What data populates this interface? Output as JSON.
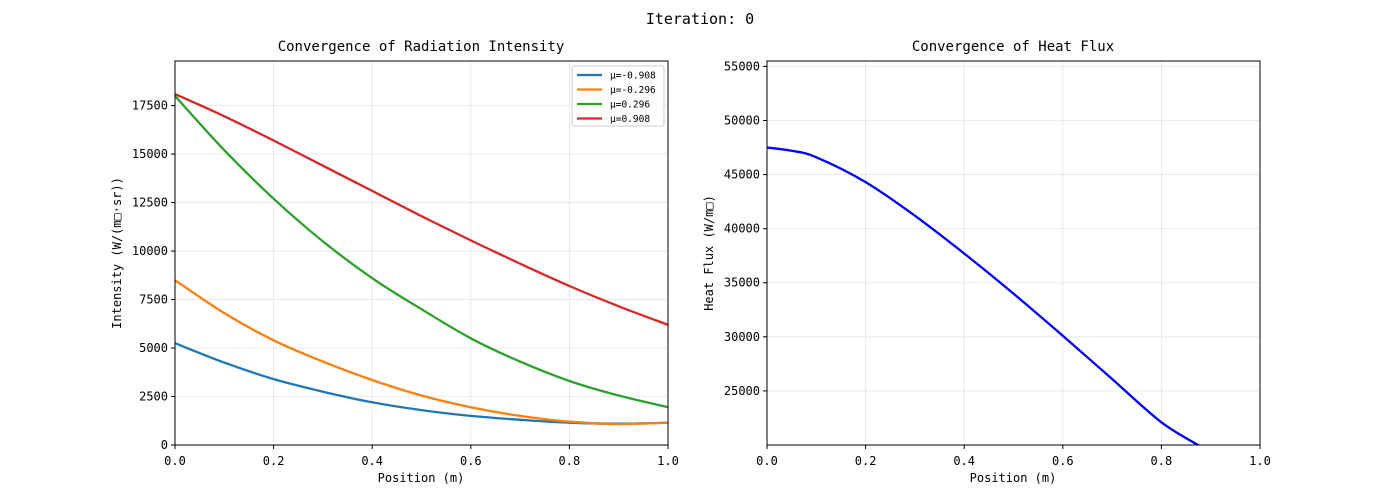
{
  "figure": {
    "suptitle": "Iteration: 0"
  },
  "colors": {
    "series": [
      "#1f77b4",
      "#ff7f0e",
      "#2ca02c",
      "#d62728"
    ],
    "heat_flux": "#0000ff",
    "grid": "#e6e6e6",
    "axes": "#000000"
  },
  "chart_data": [
    {
      "type": "line",
      "title": "Convergence of Radiation Intensity",
      "xlabel": "Position (m)",
      "ylabel": "Intensity (W/(m□·sr))",
      "xlim": [
        0,
        1
      ],
      "ylim": [
        0,
        19800
      ],
      "xticks": [
        0,
        0.2,
        0.4,
        0.6,
        0.8,
        1.0
      ],
      "xtick_labels": [
        "0.0",
        "0.2",
        "0.4",
        "0.6",
        "0.8",
        "1.0"
      ],
      "yticks": [
        0,
        2500,
        5000,
        7500,
        10000,
        12500,
        15000,
        17500
      ],
      "ytick_labels": [
        "0",
        "2500",
        "5000",
        "7500",
        "10000",
        "12500",
        "15000",
        "17500"
      ],
      "grid": true,
      "legend_position": "top-right",
      "x": [
        0,
        0.1,
        0.2,
        0.3,
        0.4,
        0.5,
        0.6,
        0.7,
        0.8,
        0.9,
        1.0
      ],
      "series": [
        {
          "name": "μ=-0.908",
          "values": [
            5250,
            4250,
            3400,
            2750,
            2200,
            1800,
            1500,
            1300,
            1150,
            1100,
            1150
          ]
        },
        {
          "name": "μ=-0.296",
          "values": [
            8500,
            6800,
            5400,
            4300,
            3350,
            2550,
            1950,
            1500,
            1200,
            1080,
            1150
          ]
        },
        {
          "name": "μ=0.296",
          "values": [
            18000,
            15200,
            12700,
            10500,
            8600,
            7000,
            5500,
            4300,
            3300,
            2550,
            1950
          ]
        },
        {
          "name": "μ=0.908",
          "values": [
            18100,
            16950,
            15700,
            14400,
            13100,
            11800,
            10550,
            9350,
            8200,
            7150,
            6200
          ]
        }
      ]
    },
    {
      "type": "line",
      "title": "Convergence of Heat Flux",
      "xlabel": "Position (m)",
      "ylabel": "Heat Flux (W/m□)",
      "xlim": [
        0,
        1
      ],
      "ylim": [
        20000,
        55500
      ],
      "xticks": [
        0,
        0.2,
        0.4,
        0.6,
        0.8,
        1.0
      ],
      "xtick_labels": [
        "0.0",
        "0.2",
        "0.4",
        "0.6",
        "0.8",
        "1.0"
      ],
      "yticks": [
        25000,
        30000,
        35000,
        40000,
        45000,
        50000,
        55000
      ],
      "ytick_labels": [
        "25000",
        "30000",
        "35000",
        "40000",
        "45000",
        "50000",
        "55000"
      ],
      "grid": true,
      "x": [
        0,
        0.05,
        0.1,
        0.2,
        0.3,
        0.4,
        0.5,
        0.6,
        0.7,
        0.8,
        0.882
      ],
      "series": [
        {
          "values": [
            47500,
            47200,
            46600,
            44300,
            41200,
            37700,
            34000,
            30100,
            26100,
            22100,
            19800
          ]
        }
      ]
    }
  ]
}
